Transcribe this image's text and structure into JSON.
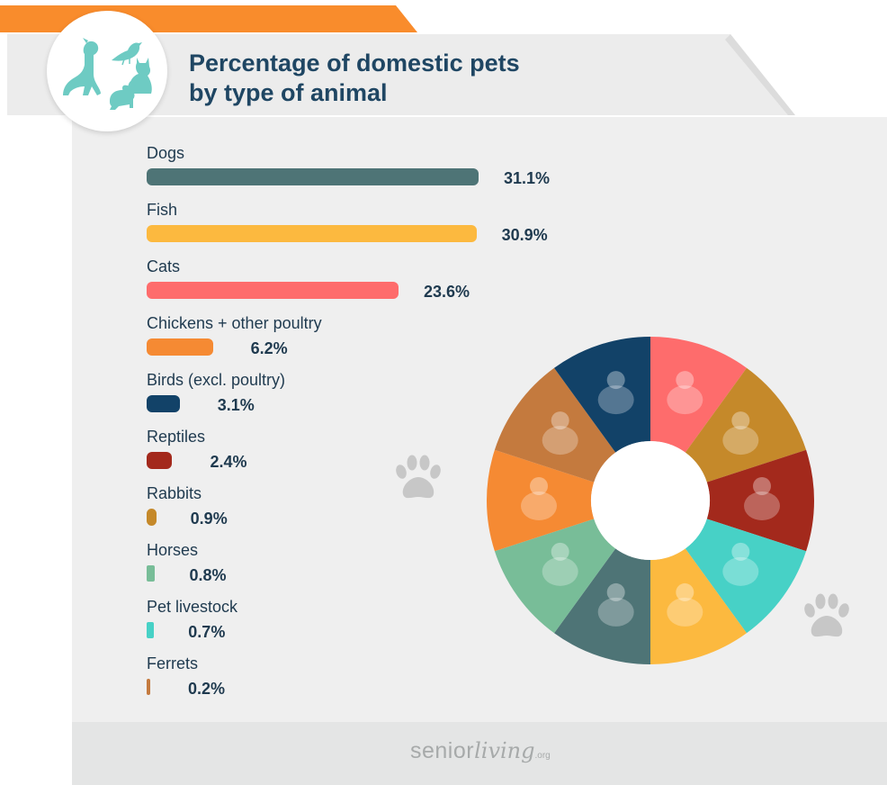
{
  "title_lines": [
    "Percentage of domestic pets",
    "by type of animal"
  ],
  "colors": {
    "accent_orange": "#f98c2c",
    "title_text": "#1f4663",
    "panel_bg": "#efefef",
    "logo_icons": "#6ecbc3"
  },
  "logo_icons": [
    "dog-icon",
    "bird-icon",
    "cat-icon",
    "rabbit-icon"
  ],
  "brand": {
    "senior": "senior",
    "living": "living",
    "org": ".org"
  },
  "chart_data": {
    "type": "bar",
    "categories": [
      "Dogs",
      "Fish",
      "Cats",
      "Chickens + other poultry",
      "Birds (excl. poultry)",
      "Reptiles",
      "Rabbits",
      "Horses",
      "Pet livestock",
      "Ferrets"
    ],
    "values": [
      31.1,
      30.9,
      23.6,
      6.2,
      3.1,
      2.4,
      0.9,
      0.8,
      0.7,
      0.2
    ],
    "value_labels": [
      "31.1%",
      "30.9%",
      "23.6%",
      "6.2%",
      "3.1%",
      "2.4%",
      "0.9%",
      "0.8%",
      "0.7%",
      "0.2%"
    ],
    "colors": [
      "#4e7476",
      "#fcb93f",
      "#fe6c6c",
      "#f58a33",
      "#124268",
      "#a3291c",
      "#c5892a",
      "#78bd98",
      "#47d1c6",
      "#c47a3e"
    ],
    "unit": "%",
    "title": "Percentage of domestic pets by type of animal",
    "legend": "none",
    "grid": false
  },
  "donut": {
    "segments": [
      {
        "animal": "cat-icon",
        "color": "#fe6c6c"
      },
      {
        "animal": "chinchilla-icon",
        "color": "#c5892a"
      },
      {
        "animal": "lizard-icon",
        "color": "#a3291c"
      },
      {
        "animal": "pig-icon",
        "color": "#47d1c6"
      },
      {
        "animal": "goldfish-icon",
        "color": "#fcb93f"
      },
      {
        "animal": "husky-icon",
        "color": "#4e7476"
      },
      {
        "animal": "horse-icon",
        "color": "#78bd98"
      },
      {
        "animal": "rooster-icon",
        "color": "#f58a33"
      },
      {
        "animal": "hamster-wheel-icon",
        "color": "#c47a3e"
      },
      {
        "animal": "parakeet-icon",
        "color": "#124268"
      }
    ]
  }
}
